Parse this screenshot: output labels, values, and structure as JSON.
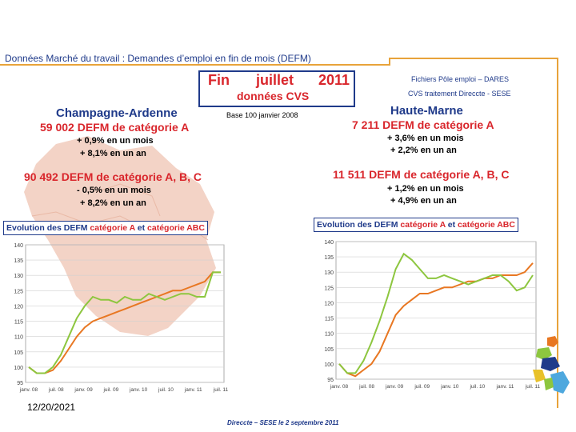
{
  "header": {
    "title": "Données Marché du travail : Demandes d’emploi en fin de mois (DEFM)"
  },
  "date_box": {
    "fin": "Fin",
    "month": "juillet",
    "year": "2011",
    "cvs": "données CVS"
  },
  "sources": {
    "line1": "Fichiers Pôle emploi – DARES",
    "line2": "CVS traitement Direccte - SESE"
  },
  "base_label": "Base 100 janvier 2008",
  "champagne": {
    "title": "Champagne-Ardenne",
    "defm_a": "59 002  DEFM de catégorie A",
    "defm_a_month": "+ 0,9%  en un mois",
    "defm_a_year": "+ 8,1%  en un an",
    "defm_abc": "90 492  DEFM de catégorie A, B, C",
    "defm_abc_month": "- 0,5%  en un mois",
    "defm_abc_year": "+ 8,2%  en un an"
  },
  "haute_marne": {
    "title": "Haute-Marne",
    "defm_a": "7 211  DEFM de catégorie A",
    "defm_a_month": "+ 3,6%  en un mois",
    "defm_a_year": "+ 2,2%  en un an",
    "defm_abc": "11 511  DEFM de catégorie A, B, C",
    "defm_abc_month": "+ 1,2%  en un mois",
    "defm_abc_year": "+ 4,9%  en un an"
  },
  "evolution_label": {
    "prefix": "Evolution des DEFM ",
    "cat_a": "catégorie A",
    "mid": " et ",
    "cat_abc": "catégorie ABC"
  },
  "footer": {
    "date": "12/20/2021",
    "note": "Direccte – SESE le 2 septembre 2011"
  },
  "colors": {
    "cat_a": "#e87722",
    "cat_abc": "#8dc63f",
    "title_blue": "#1f3a8a",
    "accent_red": "#d9262c",
    "map": "#f3d3c6"
  },
  "icons": {
    "logo": "region-logo-icon"
  },
  "chart_data": [
    {
      "type": "line",
      "region": "Champagne-Ardenne",
      "ylim": [
        95,
        140
      ],
      "yticks": [
        95,
        100,
        105,
        110,
        115,
        120,
        125,
        130,
        135,
        140
      ],
      "xlabels": [
        "janv. 08",
        "juil. 08",
        "janv. 09",
        "juil. 09",
        "janv. 10",
        "juil. 10",
        "janv. 11",
        "juil. 11"
      ],
      "series": [
        {
          "name": "catégorie A",
          "color": "#e87722",
          "values": [
            100,
            98,
            98,
            99,
            102,
            106,
            110,
            113,
            115,
            116,
            117,
            118,
            119,
            120,
            121,
            122,
            123,
            124,
            125,
            125,
            126,
            127,
            128,
            131,
            131
          ]
        },
        {
          "name": "catégorie ABC",
          "color": "#8dc63f",
          "values": [
            100,
            98,
            98,
            100,
            104,
            110,
            116,
            120,
            123,
            122,
            122,
            121,
            123,
            122,
            122,
            124,
            123,
            122,
            123,
            124,
            124,
            123,
            123,
            131,
            131
          ]
        }
      ]
    },
    {
      "type": "line",
      "region": "Haute-Marne",
      "ylim": [
        95,
        140
      ],
      "yticks": [
        95,
        100,
        105,
        110,
        115,
        120,
        125,
        130,
        135,
        140
      ],
      "xlabels": [
        "janv. 08",
        "juil. 08",
        "janv. 09",
        "juil. 09",
        "janv. 10",
        "juil. 10",
        "janv. 11",
        "juil. 11"
      ],
      "series": [
        {
          "name": "catégorie A",
          "color": "#e87722",
          "values": [
            100,
            97,
            96,
            98,
            100,
            104,
            110,
            116,
            119,
            121,
            123,
            123,
            124,
            125,
            125,
            126,
            127,
            127,
            128,
            128,
            129,
            129,
            129,
            130,
            133
          ]
        },
        {
          "name": "catégorie ABC",
          "color": "#8dc63f",
          "values": [
            100,
            97,
            97,
            101,
            107,
            114,
            122,
            131,
            136,
            134,
            131,
            128,
            128,
            129,
            128,
            127,
            126,
            127,
            128,
            129,
            129,
            127,
            124,
            125,
            129
          ]
        }
      ]
    }
  ]
}
